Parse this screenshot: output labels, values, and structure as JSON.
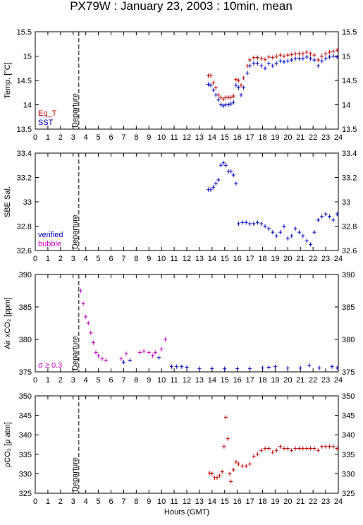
{
  "title": "PX79W : January 23, 2003 : 10min. mean",
  "chart_data": [
    {
      "type": "scatter",
      "ylabel": "Temp. [°C]",
      "xlim": [
        0,
        24
      ],
      "xticks": [
        0,
        1,
        2,
        3,
        4,
        5,
        6,
        7,
        8,
        9,
        10,
        11,
        12,
        13,
        14,
        15,
        16,
        17,
        18,
        19,
        20,
        21,
        22,
        23,
        24
      ],
      "ylim": [
        13.5,
        15.5
      ],
      "yticks": [
        13.5,
        14,
        14.5,
        15,
        15.5
      ],
      "legend": "lower left",
      "annotations": [
        {
          "text": "Departure",
          "x": 3.45
        }
      ],
      "series": [
        {
          "name": "Eq_T",
          "color": "#c80000",
          "x": [
            13.7,
            13.9,
            14.1,
            14.3,
            14.5,
            14.7,
            14.9,
            15.1,
            15.3,
            15.5,
            15.7,
            15.9,
            16.1,
            16.3,
            16.5,
            16.8,
            17.0,
            17.3,
            17.6,
            17.9,
            18.2,
            18.5,
            18.8,
            19.1,
            19.4,
            19.7,
            20.0,
            20.3,
            20.6,
            20.9,
            21.2,
            21.5,
            21.8,
            22.1,
            22.4,
            22.7,
            23.0,
            23.3,
            23.6,
            23.9
          ],
          "values": [
            14.6,
            14.6,
            14.45,
            14.35,
            14.2,
            14.15,
            14.12,
            14.15,
            14.15,
            14.15,
            14.18,
            14.52,
            14.5,
            14.4,
            14.55,
            14.8,
            14.92,
            14.97,
            14.97,
            14.95,
            14.93,
            14.98,
            14.97,
            15.0,
            15.02,
            15.0,
            15.02,
            15.03,
            15.05,
            15.05,
            15.05,
            15.08,
            15.05,
            15.02,
            14.92,
            15.0,
            15.05,
            15.08,
            15.1,
            15.12
          ]
        },
        {
          "name": "SST",
          "color": "#0000c8",
          "x": [
            13.7,
            13.9,
            14.1,
            14.3,
            14.5,
            14.7,
            14.9,
            15.1,
            15.3,
            15.5,
            15.7,
            15.9,
            16.1,
            16.3,
            16.5,
            16.8,
            17.0,
            17.3,
            17.6,
            17.9,
            18.2,
            18.5,
            18.8,
            19.1,
            19.4,
            19.7,
            20.0,
            20.3,
            20.6,
            20.9,
            21.2,
            21.5,
            21.8,
            22.1,
            22.4,
            22.7,
            23.0,
            23.3,
            23.6,
            23.9
          ],
          "values": [
            14.42,
            14.4,
            14.3,
            14.2,
            14.1,
            14.0,
            13.98,
            14.0,
            14.0,
            14.02,
            14.05,
            14.4,
            14.35,
            14.2,
            14.35,
            14.65,
            14.8,
            14.85,
            14.85,
            14.8,
            14.75,
            14.85,
            14.8,
            14.85,
            14.9,
            14.88,
            14.9,
            14.92,
            14.95,
            14.95,
            14.95,
            14.98,
            14.95,
            14.92,
            14.8,
            14.9,
            14.95,
            14.98,
            15.0,
            14.98
          ]
        }
      ]
    },
    {
      "type": "scatter",
      "ylabel": "SBE Sal.",
      "xlim": [
        0,
        24
      ],
      "xticks": [
        0,
        1,
        2,
        3,
        4,
        5,
        6,
        7,
        8,
        9,
        10,
        11,
        12,
        13,
        14,
        15,
        16,
        17,
        18,
        19,
        20,
        21,
        22,
        23,
        24
      ],
      "ylim": [
        32.6,
        33.4
      ],
      "yticks": [
        32.6,
        32.8,
        33,
        33.2,
        33.4
      ],
      "legend": "lower left",
      "annotations": [
        {
          "text": "Departure",
          "x": 3.45
        }
      ],
      "series": [
        {
          "name": "verified",
          "color": "#0000c8",
          "x": [
            13.7,
            13.9,
            14.1,
            14.3,
            14.5,
            14.7,
            14.9,
            15.1,
            15.3,
            15.5,
            15.7,
            15.9,
            16.1,
            16.4,
            16.7,
            17.0,
            17.3,
            17.6,
            17.9,
            18.2,
            18.5,
            18.8,
            19.1,
            19.4,
            19.7,
            20.0,
            20.3,
            20.6,
            20.9,
            21.2,
            21.5,
            21.8,
            22.1,
            22.4,
            22.7,
            23.0,
            23.3,
            23.6,
            23.9
          ],
          "values": [
            33.1,
            33.1,
            33.12,
            33.15,
            33.18,
            33.3,
            33.32,
            33.3,
            33.25,
            33.25,
            33.22,
            33.15,
            32.82,
            32.83,
            32.83,
            32.82,
            32.82,
            32.83,
            32.82,
            32.8,
            32.78,
            32.75,
            32.72,
            32.75,
            32.8,
            32.7,
            32.72,
            32.78,
            32.75,
            32.72,
            32.68,
            32.65,
            32.75,
            32.85,
            32.88,
            32.9,
            32.88,
            32.85,
            32.9
          ]
        },
        {
          "name": "bubble",
          "color": "#c800c8",
          "x": [],
          "values": []
        }
      ]
    },
    {
      "type": "scatter",
      "ylabel": "Air xCO₂ [ppm]",
      "xlim": [
        0,
        24
      ],
      "xticks": [
        0,
        1,
        2,
        3,
        4,
        5,
        6,
        7,
        8,
        9,
        10,
        11,
        12,
        13,
        14,
        15,
        16,
        17,
        18,
        19,
        20,
        21,
        22,
        23,
        24
      ],
      "ylim": [
        375,
        390
      ],
      "yticks": [
        375,
        380,
        385,
        390
      ],
      "legend": "lower left",
      "annotations": [
        {
          "text": "Departure",
          "x": 3.45
        }
      ],
      "series": [
        {
          "color": "#0000c8",
          "x": [
            7.0,
            7.5,
            9.8,
            10.8,
            11.2,
            11.6,
            12.0,
            13.0,
            14.0,
            15.0,
            16.0,
            17.0,
            18.0,
            18.5,
            19.0,
            20.0,
            21.0,
            21.7,
            22.5,
            23.5,
            23.9
          ],
          "values": [
            376.5,
            376.8,
            377.2,
            375.8,
            375.8,
            375.8,
            375.7,
            375.5,
            375.5,
            375.5,
            375.5,
            375.5,
            375.6,
            375.7,
            375.8,
            375.6,
            375.6,
            376.0,
            375.6,
            375.8,
            375.6
          ]
        },
        {
          "name": "σ ≥ 0.3",
          "color": "#c800c8",
          "x": [
            3.6,
            3.8,
            4.0,
            4.2,
            4.4,
            4.6,
            4.8,
            5.0,
            5.3,
            5.6,
            6.8,
            7.2,
            8.3,
            8.6,
            9.0,
            9.3,
            9.5,
            10.0,
            10.3
          ],
          "values": [
            387.5,
            385.5,
            383.5,
            382.5,
            381,
            379.5,
            378,
            377.5,
            377,
            376.8,
            377,
            377.8,
            378,
            378.2,
            378,
            377.5,
            378,
            378.5,
            380
          ]
        }
      ]
    },
    {
      "type": "scatter",
      "ylabel": "ρCO₂ [μ atm]",
      "xlabel": "Hours (GMT)",
      "xlim": [
        0,
        24
      ],
      "xticks": [
        0,
        1,
        2,
        3,
        4,
        5,
        6,
        7,
        8,
        9,
        10,
        11,
        12,
        13,
        14,
        15,
        16,
        17,
        18,
        19,
        20,
        21,
        22,
        23,
        24
      ],
      "ylim": [
        325,
        350
      ],
      "yticks": [
        325,
        330,
        335,
        340,
        345,
        350
      ],
      "annotations": [
        {
          "text": "Departure",
          "x": 3.45
        }
      ],
      "series": [
        {
          "color": "#c80000",
          "x": [
            13.8,
            14.0,
            14.2,
            14.4,
            14.6,
            14.8,
            14.95,
            15.1,
            15.25,
            15.4,
            15.5,
            15.7,
            15.9,
            16.1,
            16.4,
            16.7,
            17.0,
            17.3,
            17.6,
            17.9,
            18.2,
            18.5,
            18.8,
            19.1,
            19.4,
            19.7,
            20.0,
            20.3,
            20.6,
            20.9,
            21.2,
            21.5,
            21.8,
            22.1,
            22.4,
            22.7,
            23.0,
            23.3,
            23.6,
            23.9
          ],
          "values": [
            330.2,
            330,
            329,
            329,
            329.5,
            330.5,
            337,
            344.5,
            339,
            330,
            328,
            331,
            333,
            332.5,
            332,
            332,
            332.5,
            334.5,
            335,
            336,
            336.5,
            336.5,
            335.5,
            336,
            337,
            336.5,
            336.5,
            336,
            336.5,
            336.5,
            336.5,
            336.5,
            336.5,
            336.5,
            336,
            337,
            337,
            337,
            337,
            336.5
          ]
        }
      ]
    }
  ]
}
